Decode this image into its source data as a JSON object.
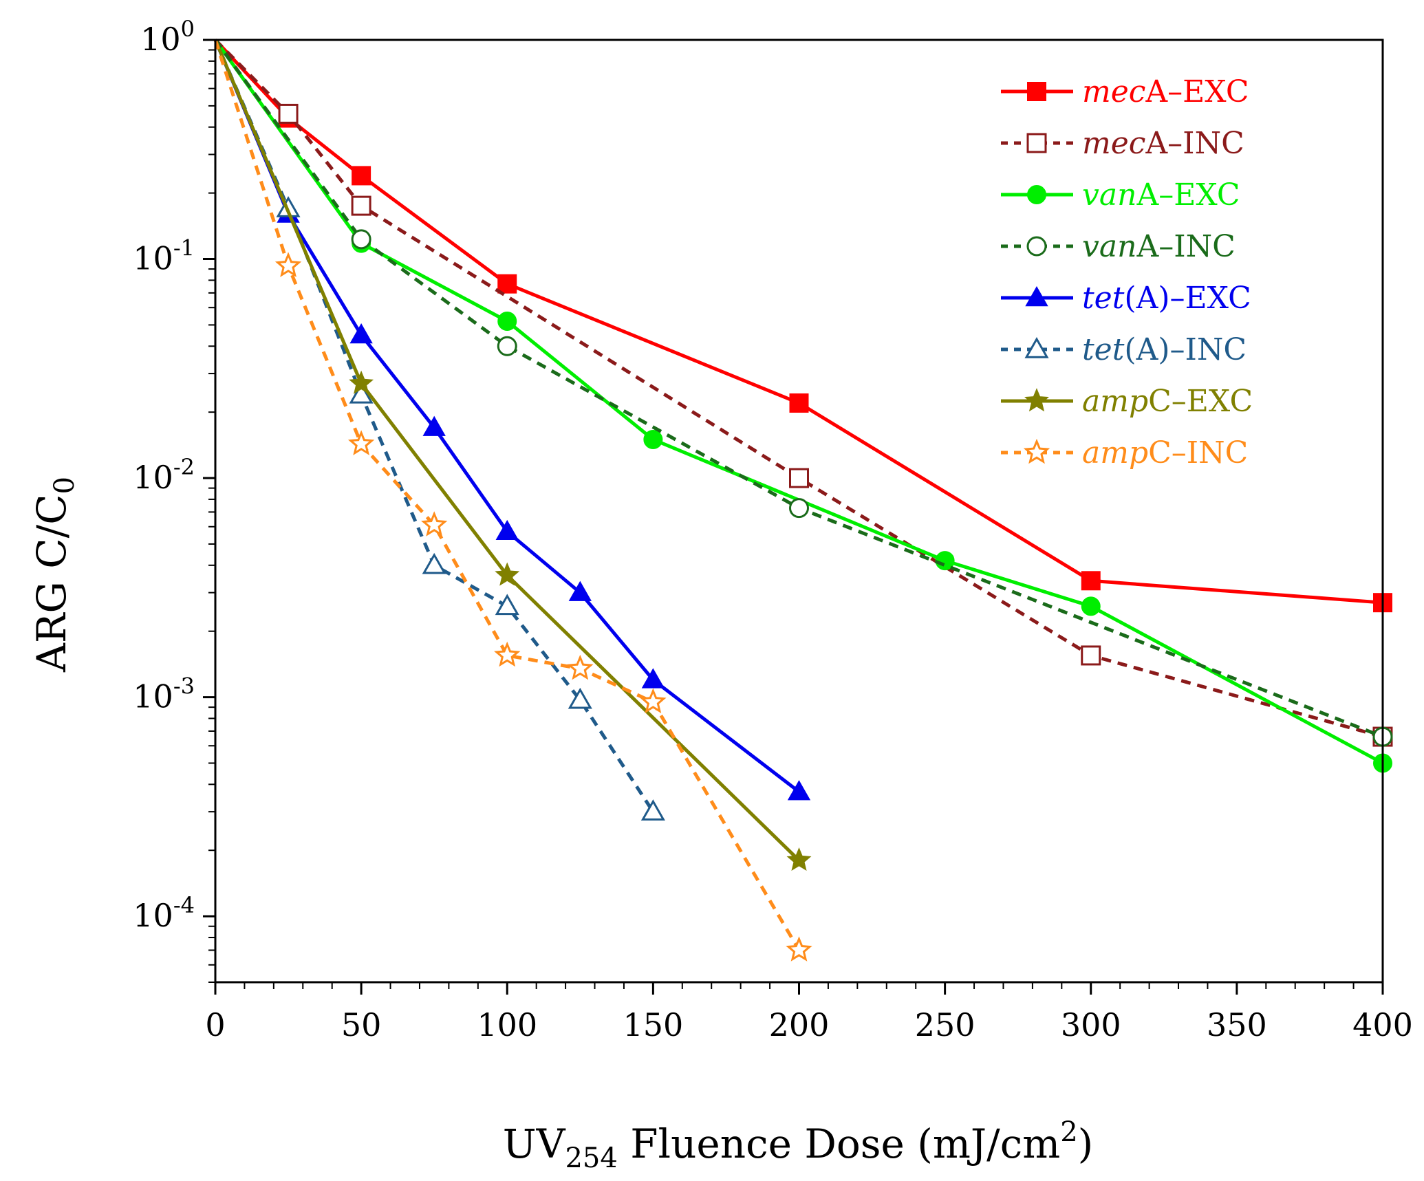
{
  "chart_data": {
    "type": "line",
    "title": "",
    "xlabel": {
      "prefix": "UV",
      "sub": "254",
      "mid": " Fluence Dose (mJ/cm",
      "sup": "2",
      "suffix": ")"
    },
    "ylabel": {
      "prefix": "ARG C/C",
      "sub": "0"
    },
    "xlim": [
      0,
      400
    ],
    "ylim": [
      5e-05,
      1
    ],
    "yscale": "log",
    "x_ticks": [
      "0",
      "50",
      "100",
      "150",
      "200",
      "250",
      "300",
      "350",
      "400"
    ],
    "y_ticks": [
      {
        "base": "10",
        "exp": "0",
        "value": 1
      },
      {
        "base": "10",
        "exp": "-1",
        "value": 0.1
      },
      {
        "base": "10",
        "exp": "-2",
        "value": 0.01
      },
      {
        "base": "10",
        "exp": "-3",
        "value": 0.001
      },
      {
        "base": "10",
        "exp": "-4",
        "value": 0.0001
      }
    ],
    "legend_position": "top-right",
    "series": [
      {
        "name": "mecA-EXC",
        "gene": "mec",
        "suffix": "A–EXC",
        "color": "#ff0000",
        "marker": "square",
        "filled": true,
        "dashed": false,
        "x": [
          0,
          25,
          50,
          100,
          200,
          300,
          400
        ],
        "y": [
          1,
          0.44,
          0.24,
          0.077,
          0.022,
          0.0034,
          0.0027
        ]
      },
      {
        "name": "mecA-INC",
        "gene": "mec",
        "suffix": "A–INC",
        "color": "#8b1a1a",
        "marker": "square",
        "filled": false,
        "dashed": true,
        "x": [
          0,
          25,
          50,
          200,
          300,
          400
        ],
        "y": [
          1,
          0.46,
          0.175,
          0.01,
          0.00155,
          0.00066
        ]
      },
      {
        "name": "vanA-EXC",
        "gene": "van",
        "suffix": "A–EXC",
        "color": "#00ee00",
        "marker": "circle",
        "filled": true,
        "dashed": false,
        "x": [
          0,
          50,
          100,
          150,
          250,
          300,
          400
        ],
        "y": [
          1,
          0.118,
          0.052,
          0.015,
          0.0042,
          0.0026,
          0.0005
        ]
      },
      {
        "name": "vanA-INC",
        "gene": "van",
        "suffix": "A–INC",
        "color": "#1a6b1a",
        "marker": "circle",
        "filled": false,
        "dashed": true,
        "x": [
          0,
          50,
          100,
          200,
          400
        ],
        "y": [
          1,
          0.123,
          0.04,
          0.0073,
          0.00066
        ]
      },
      {
        "name": "tet(A)-EXC",
        "gene": "tet",
        "suffix": "(A)–EXC",
        "color": "#0000ee",
        "marker": "triangle",
        "filled": true,
        "dashed": false,
        "x": [
          0,
          25,
          50,
          75,
          100,
          125,
          150,
          200
        ],
        "y": [
          1,
          0.16,
          0.045,
          0.017,
          0.0057,
          0.003,
          0.0012,
          0.00037
        ]
      },
      {
        "name": "tet(A)-INC",
        "gene": "tet",
        "suffix": "(A)–INC",
        "color": "#1f5a8a",
        "marker": "triangle",
        "filled": false,
        "dashed": true,
        "x": [
          0,
          25,
          50,
          75,
          100,
          125,
          150
        ],
        "y": [
          1,
          0.17,
          0.024,
          0.004,
          0.0026,
          0.00097,
          0.0003
        ]
      },
      {
        "name": "ampC-EXC",
        "gene": "amp",
        "suffix": "C–EXC",
        "color": "#808000",
        "marker": "star",
        "filled": true,
        "dashed": false,
        "x": [
          0,
          50,
          100,
          200
        ],
        "y": [
          1,
          0.027,
          0.0036,
          0.00018
        ]
      },
      {
        "name": "ampC-INC",
        "gene": "amp",
        "suffix": "C–INC",
        "color": "#ff8c1a",
        "marker": "star",
        "filled": false,
        "dashed": true,
        "x": [
          0,
          25,
          50,
          75,
          100,
          125,
          150,
          200
        ],
        "y": [
          1,
          0.093,
          0.0143,
          0.0061,
          0.00155,
          0.00135,
          0.00095,
          7e-05
        ]
      }
    ]
  }
}
